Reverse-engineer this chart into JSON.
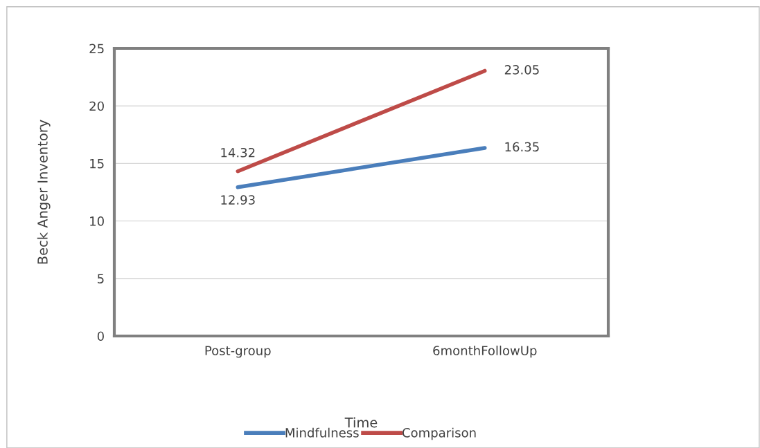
{
  "chart_data": {
    "type": "line",
    "xlabel": "Time",
    "ylabel": "Beck Anger Inventory",
    "categories": [
      "Post-group",
      "6monthFollowUp"
    ],
    "series": [
      {
        "name": "Mindfulness",
        "color": "#4a7ebb",
        "values": [
          12.93,
          16.35
        ]
      },
      {
        "name": "Comparison",
        "color": "#be4b48",
        "values": [
          14.32,
          23.05
        ]
      }
    ],
    "ylim": [
      0,
      25
    ],
    "yticks": [
      0,
      5,
      10,
      15,
      20,
      25
    ],
    "grid": "y",
    "legend": "bottom",
    "data_labels": true,
    "marker": "none",
    "line_style": "solid"
  }
}
